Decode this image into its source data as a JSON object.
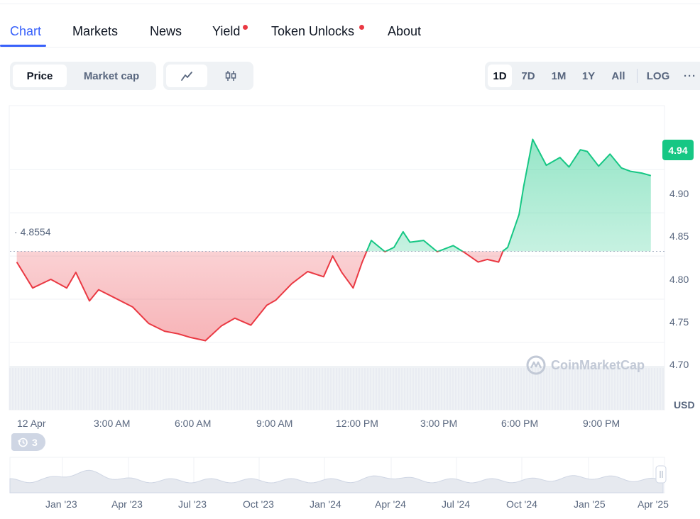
{
  "tabs": [
    {
      "label": "Chart",
      "active": true,
      "dot": false
    },
    {
      "label": "Markets",
      "active": false,
      "dot": false
    },
    {
      "label": "News",
      "active": false,
      "dot": false
    },
    {
      "label": "Yield",
      "active": false,
      "dot": true
    },
    {
      "label": "Token Unlocks",
      "active": false,
      "dot": true
    },
    {
      "label": "About",
      "active": false,
      "dot": false
    }
  ],
  "toggles": {
    "price_label": "Price",
    "market_cap_label": "Market cap",
    "line_icon": "line-chart-icon",
    "candle_icon": "candlestick-icon"
  },
  "ranges": {
    "items": [
      "1D",
      "7D",
      "1M",
      "1Y",
      "All"
    ],
    "selected": "1D",
    "log_label": "LOG",
    "more_label": "···"
  },
  "chart_data": {
    "type": "area",
    "y_unit": "USD",
    "ylim": [
      4.672,
      5.024
    ],
    "y_ticks": [
      "4.70",
      "4.75",
      "4.80",
      "4.85",
      "4.90"
    ],
    "reference_price": 4.8554,
    "reference_label": "4.8554",
    "current_price_label": "4.94",
    "x_ticks": [
      "12 Apr",
      "3:00 AM",
      "6:00 AM",
      "9:00 AM",
      "12:00 PM",
      "3:00 PM",
      "6:00 PM",
      "9:00 PM"
    ],
    "series": [
      {
        "x": [
          "00:15",
          "00:50",
          "01:30",
          "02:05",
          "02:25",
          "02:55",
          "03:15",
          "03:45",
          "04:30",
          "05:05",
          "05:40",
          "06:10",
          "06:35",
          "07:10",
          "07:45",
          "08:15",
          "08:50",
          "09:25",
          "09:45",
          "10:20",
          "10:55",
          "11:30",
          "11:50",
          "12:10",
          "12:35",
          "12:55",
          "13:15",
          "13:45",
          "14:05",
          "14:25",
          "14:40",
          "15:10",
          "15:40",
          "16:15",
          "16:40",
          "17:10",
          "17:30",
          "17:55",
          "18:05",
          "18:15",
          "18:40",
          "18:50",
          "19:10",
          "19:40",
          "20:10",
          "20:30",
          "20:55",
          "21:10",
          "21:35",
          "22:00",
          "22:25",
          "22:45",
          "23:10",
          "23:30"
        ],
        "y": [
          4.843,
          4.813,
          4.823,
          4.813,
          4.831,
          4.798,
          4.811,
          4.803,
          4.791,
          4.772,
          4.763,
          4.76,
          4.756,
          4.752,
          4.769,
          4.778,
          4.77,
          4.793,
          4.799,
          4.818,
          4.832,
          4.826,
          4.85,
          4.831,
          4.813,
          4.843,
          4.868,
          4.855,
          4.86,
          4.878,
          4.866,
          4.868,
          4.855,
          4.862,
          4.854,
          4.843,
          4.846,
          4.843,
          4.856,
          4.86,
          4.898,
          4.93,
          4.985,
          4.955,
          4.964,
          4.953,
          4.973,
          4.971,
          4.954,
          4.968,
          4.952,
          4.948,
          4.946,
          4.943
        ]
      }
    ],
    "up_color": "#16c784",
    "down_color": "#ea3943",
    "navigator_x_ticks": [
      "Jan '23",
      "Apr '23",
      "Jul '23",
      "Oct '23",
      "Jan '24",
      "Apr '24",
      "Jul '24",
      "Oct '24",
      "Jan '25",
      "Apr '25"
    ],
    "history_count": "3",
    "watermark": "CoinMarketCap"
  }
}
